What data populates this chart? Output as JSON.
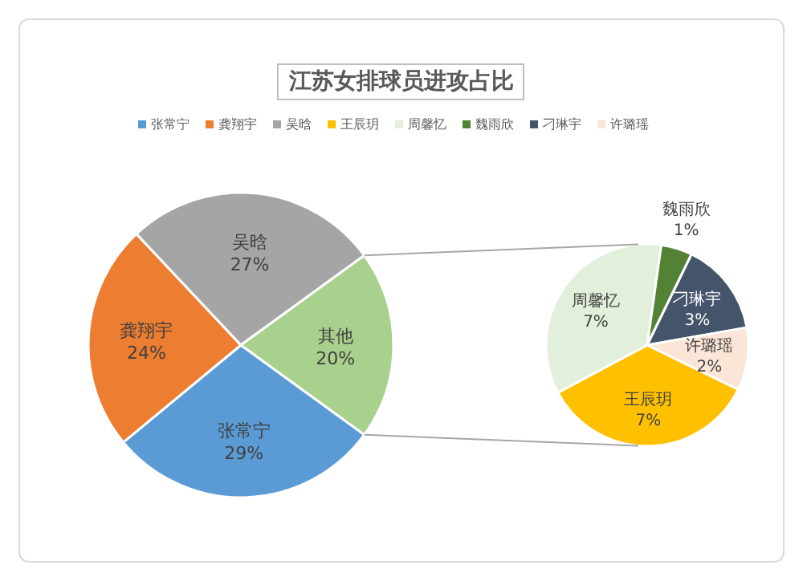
{
  "chart_data": [
    {
      "type": "pie",
      "title": "江苏女排球员进攻占比",
      "legend": "top",
      "categories": [
        "张常宁",
        "龚翔宇",
        "吴晗",
        "其他"
      ],
      "values": [
        29,
        24,
        27,
        20
      ],
      "value_labels": [
        "29%",
        "24%",
        "27%",
        "20%"
      ],
      "colors": [
        "#5b9bd5",
        "#ed7d31",
        "#a5a5a5",
        "#a9d18e"
      ]
    },
    {
      "type": "pie",
      "categories": [
        "王辰玥",
        "周馨忆",
        "魏雨欣",
        "刁琳宇",
        "许璐瑶"
      ],
      "values": [
        7,
        7,
        1,
        3,
        2
      ],
      "value_labels": [
        "7%",
        "7%",
        "1%",
        "3%",
        "2%"
      ],
      "colors": [
        "#ffc000",
        "#e2efda",
        "#548235",
        "#44546a",
        "#fbe5d6"
      ]
    }
  ]
}
